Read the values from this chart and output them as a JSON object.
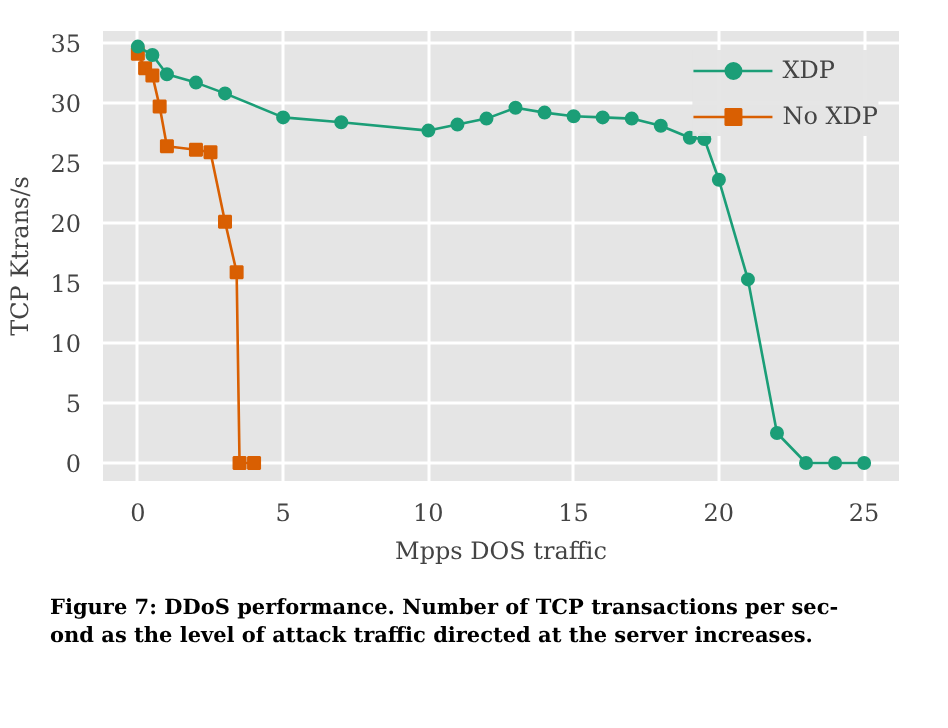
{
  "chart_data": {
    "type": "line",
    "xlabel": "Mpps DOS traffic",
    "ylabel": "TCP Ktrans/s",
    "xlim": [
      -1.2,
      26.2
    ],
    "ylim": [
      -1.5,
      36
    ],
    "xticks": [
      0,
      5,
      10,
      15,
      20,
      25
    ],
    "yticks": [
      0,
      5,
      10,
      15,
      20,
      25,
      30,
      35
    ],
    "grid": true,
    "legend": "top right",
    "series": [
      {
        "name": "XDP",
        "color": "#1b9e77",
        "marker": "circle",
        "x": [
          0,
          0.5,
          1,
          2,
          3,
          5,
          7,
          10,
          11,
          12,
          13,
          14,
          15,
          16,
          17,
          18,
          19,
          19.5,
          20,
          21,
          22,
          23,
          24,
          25
        ],
        "values": [
          34.7,
          34.0,
          32.4,
          31.7,
          30.8,
          28.8,
          28.4,
          27.7,
          28.2,
          28.7,
          29.6,
          29.2,
          28.9,
          28.8,
          28.7,
          28.1,
          27.1,
          27.0,
          23.6,
          15.3,
          2.5,
          0,
          0,
          0
        ]
      },
      {
        "name": "No XDP",
        "color": "#d95f02",
        "marker": "square",
        "x": [
          0,
          0.25,
          0.5,
          0.75,
          1,
          2,
          2.5,
          3,
          3.4,
          3.5,
          4
        ],
        "values": [
          34.1,
          32.9,
          32.3,
          29.7,
          26.4,
          26.1,
          25.9,
          20.1,
          15.9,
          0,
          0
        ]
      }
    ],
    "annotations": [
      "Figure 7:  DDoS performance. Number of TCP transactions per sec-\nond as the level of attack traffic directed at the server increases."
    ]
  }
}
